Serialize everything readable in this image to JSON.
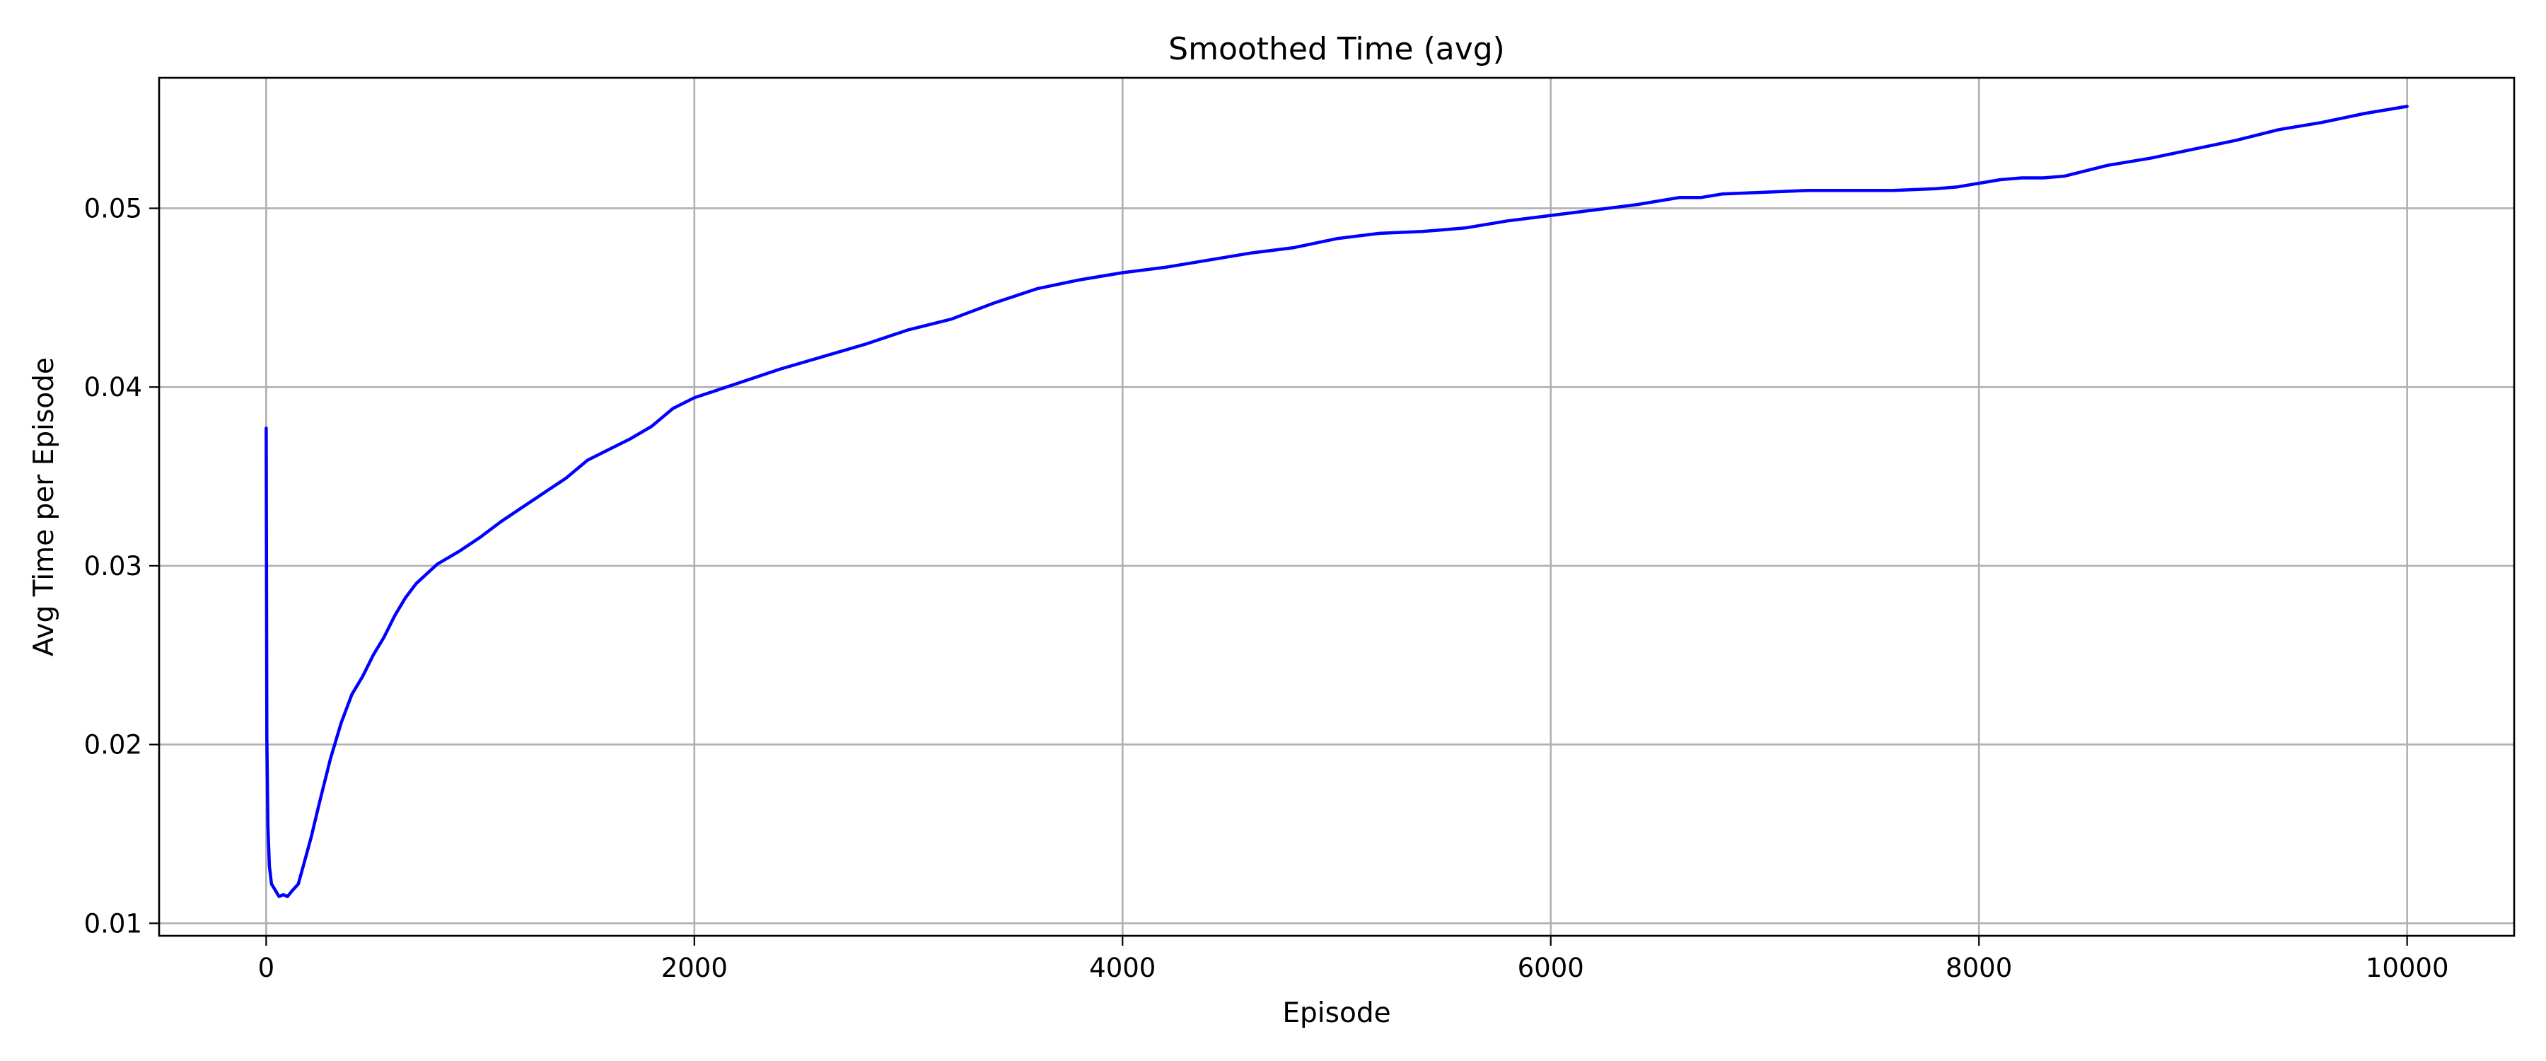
{
  "chart_data": {
    "type": "line",
    "title": "Smoothed Time (avg)",
    "xlabel": "Episode",
    "ylabel": "Avg Time per Episode",
    "xlim": [
      -500,
      10500
    ],
    "ylim": [
      0.0093,
      0.0573
    ],
    "xticks": [
      0,
      2000,
      4000,
      6000,
      8000,
      10000
    ],
    "xtick_labels": [
      "0",
      "2000",
      "4000",
      "6000",
      "8000",
      "10000"
    ],
    "yticks": [
      0.01,
      0.02,
      0.03,
      0.04,
      0.05
    ],
    "ytick_labels": [
      "0.01",
      "0.02",
      "0.03",
      "0.04",
      "0.05"
    ],
    "grid": true,
    "colors": {
      "line": "#0000ff"
    },
    "series": [
      {
        "x": [
          0,
          3,
          8,
          15,
          25,
          40,
          60,
          80,
          100,
          120,
          150,
          180,
          210,
          250,
          300,
          350,
          400,
          450,
          500,
          550,
          600,
          650,
          700,
          800,
          900,
          1000,
          1100,
          1200,
          1300,
          1400,
          1500,
          1600,
          1700,
          1800,
          1900,
          2000,
          2200,
          2400,
          2600,
          2800,
          3000,
          3200,
          3400,
          3600,
          3800,
          4000,
          4200,
          4400,
          4600,
          4800,
          5000,
          5200,
          5400,
          5600,
          5800,
          6000,
          6200,
          6400,
          6600,
          6700,
          6800,
          7000,
          7200,
          7400,
          7600,
          7800,
          7900,
          8000,
          8100,
          8200,
          8300,
          8400,
          8600,
          8800,
          9000,
          9200,
          9400,
          9600,
          9800,
          10000
        ],
        "y": [
          0.0377,
          0.0205,
          0.0155,
          0.0132,
          0.0122,
          0.0119,
          0.0115,
          0.0116,
          0.0115,
          0.0118,
          0.0122,
          0.0135,
          0.0148,
          0.0168,
          0.0192,
          0.0212,
          0.0228,
          0.0238,
          0.025,
          0.026,
          0.0272,
          0.0282,
          0.029,
          0.0301,
          0.0308,
          0.0316,
          0.0325,
          0.0333,
          0.0341,
          0.0349,
          0.0359,
          0.0365,
          0.0371,
          0.0378,
          0.0388,
          0.0394,
          0.0402,
          0.041,
          0.0417,
          0.0424,
          0.0432,
          0.0438,
          0.0447,
          0.0455,
          0.046,
          0.0464,
          0.0467,
          0.0471,
          0.0475,
          0.0478,
          0.0483,
          0.0486,
          0.0487,
          0.0489,
          0.0493,
          0.0496,
          0.0499,
          0.0502,
          0.0506,
          0.0506,
          0.0508,
          0.0509,
          0.051,
          0.051,
          0.051,
          0.0511,
          0.0512,
          0.0514,
          0.0516,
          0.0517,
          0.0517,
          0.0518,
          0.0524,
          0.0528,
          0.0533,
          0.0538,
          0.0544,
          0.0548,
          0.0553,
          0.0557
        ]
      }
    ]
  }
}
